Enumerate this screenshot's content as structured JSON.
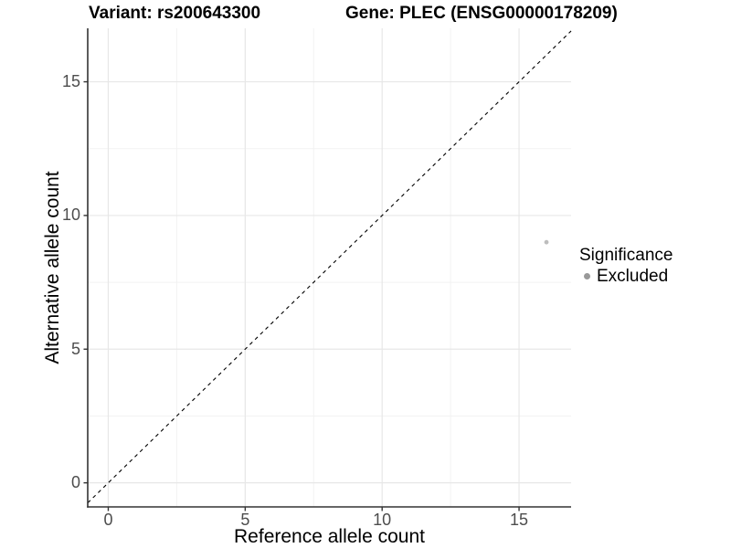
{
  "titles": {
    "variant": "Variant: rs200643300",
    "gene": "Gene: PLEC (ENSG00000178209)"
  },
  "legend": {
    "title": "Significance",
    "items": [
      {
        "label": "Excluded",
        "color": "#999999"
      }
    ]
  },
  "chart_data": {
    "type": "scatter",
    "title_left": "Variant: rs200643300",
    "title_right": "Gene: PLEC (ENSG00000178209)",
    "xlabel": "Reference allele count",
    "ylabel": "Alternative allele count",
    "xlim": [
      -0.75,
      16.9
    ],
    "ylim": [
      -0.9,
      17.0
    ],
    "xticks": [
      0,
      5,
      10,
      15
    ],
    "yticks": [
      0,
      5,
      10,
      15
    ],
    "x_minor": [
      2.5,
      7.5,
      12.5
    ],
    "y_minor": [
      2.5,
      7.5,
      12.5
    ],
    "grid": true,
    "legend_position": "right",
    "refline": {
      "type": "abline",
      "slope": 1,
      "intercept": 0,
      "style": "dashed",
      "color": "#000000"
    },
    "series": [
      {
        "name": "Excluded",
        "points": [
          {
            "x": 16,
            "y": 9
          }
        ],
        "color": "#bdbdbd"
      }
    ],
    "colors": {
      "grid_major": "#e7e7e7",
      "grid_minor": "#f2f2f2",
      "axis_line": "#333333",
      "tick_label": "#4d4d4d",
      "point": "#bdbdbd",
      "legend_dot": "#999999"
    }
  }
}
